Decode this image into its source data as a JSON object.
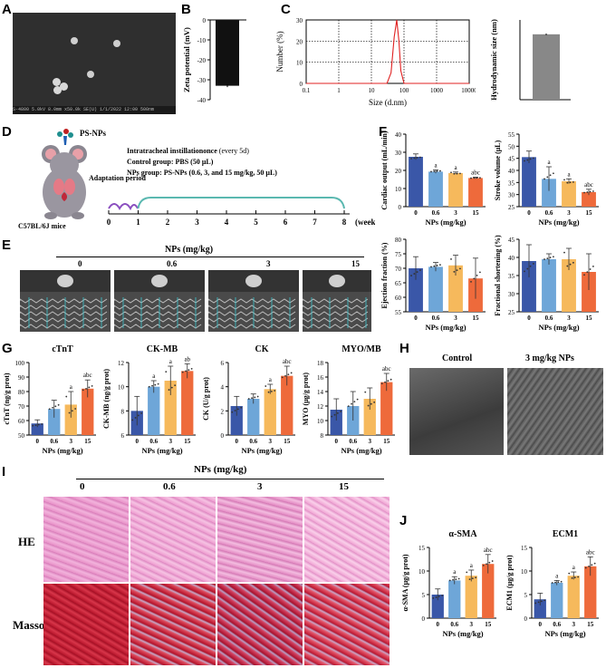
{
  "panel_labels": {
    "A": "A",
    "B": "B",
    "C": "C",
    "D": "D",
    "E": "E",
    "F": "F",
    "G": "G",
    "H": "H",
    "I": "I",
    "J": "J"
  },
  "colors": {
    "blue": "#3a57a8",
    "lightblue": "#6ea6d8",
    "orange": "#f6b95c",
    "red": "#ee6a3b",
    "dls": "#e02020",
    "gray": "#888888",
    "black": "#111111"
  },
  "panel_a": {
    "caption": "S-4800 5.0kV 8.0mm x50.0k SE(U) 1/1/2022 12:00   500nm"
  },
  "panel_d": {
    "agent": "PS-NPs",
    "adaptation": "Adaptation period",
    "protocol_line1": "Intratracheal instillationonce",
    "protocol_every": "(every 5d)",
    "protocol_line2": "Control group: PBS (50 μL)",
    "protocol_line3": "NPs group: PS-NPs (0.6, 3, and 15 mg/kg, 50 μL)",
    "mice": "C57BL/6J mice",
    "ticks": [
      "0",
      "1",
      "2",
      "3",
      "4",
      "5",
      "6",
      "7",
      "8"
    ],
    "unit": "(weeks)"
  },
  "panel_e": {
    "title": "NPs (mg/kg)",
    "doses": [
      "0",
      "0.6",
      "3",
      "15"
    ]
  },
  "panel_h": {
    "control": "Control",
    "treated": "3 mg/kg NPs"
  },
  "panel_i": {
    "title": "NPs (mg/kg)",
    "doses": [
      "0",
      "0.6",
      "3",
      "15"
    ],
    "rows": [
      "HE",
      "Masson"
    ]
  },
  "chart_data": [
    {
      "id": "B",
      "type": "bar",
      "categories": [
        ""
      ],
      "values": [
        -33
      ],
      "ylabel": "Zeta potential (mV)",
      "ylim": [
        -40,
        0
      ],
      "yticks": [
        "0",
        "-10",
        "-20",
        "-30",
        "-40"
      ]
    },
    {
      "id": "C-left",
      "type": "line",
      "x": [
        0.1,
        1,
        10,
        30,
        40,
        50,
        60,
        70,
        80,
        100,
        1000,
        10000
      ],
      "values": [
        0,
        0,
        0,
        0,
        5,
        22,
        30,
        20,
        6,
        0,
        0,
        0
      ],
      "xlabel": "Size (d.nm)",
      "ylabel": "Number (%)",
      "ylim": [
        0,
        30
      ],
      "xticks": [
        "0.1",
        "1",
        "10",
        "100",
        "1000",
        "10000"
      ],
      "yticks": [
        "0",
        "10",
        "20",
        "30"
      ]
    },
    {
      "id": "C-right",
      "type": "bar",
      "categories": [
        ""
      ],
      "values": [
        82
      ],
      "ylabel": "Hydrodynamic size (nm)"
    },
    {
      "id": "F1",
      "type": "bar",
      "categories": [
        "0",
        "0.6",
        "3",
        "15"
      ],
      "values": [
        27.5,
        19.3,
        18.5,
        15.8
      ],
      "errors": [
        1.6,
        0.9,
        0.6,
        0.5
      ],
      "sig": [
        "",
        "a",
        "a",
        "abc"
      ],
      "ylabel": "Cardiac output (mL/min)",
      "xlabel": "NPs (mg/kg)",
      "ylim": [
        0,
        40
      ],
      "yticks": [
        "0",
        "10",
        "20",
        "30",
        "40"
      ]
    },
    {
      "id": "F2",
      "type": "bar",
      "categories": [
        "0",
        "0.6",
        "3",
        "15"
      ],
      "values": [
        45.5,
        36.5,
        35.5,
        31
      ],
      "errors": [
        2.5,
        5,
        1,
        1.2
      ],
      "sig": [
        "",
        "a",
        "a",
        "abc"
      ],
      "ylabel": "Stroke volume (μL)",
      "xlabel": "NPs (mg/kg)",
      "ylim": [
        25,
        55
      ],
      "yticks": [
        "25",
        "30",
        "35",
        "40",
        "45",
        "50",
        "55"
      ]
    },
    {
      "id": "F3",
      "type": "bar",
      "categories": [
        "0",
        "0.6",
        "3",
        "15"
      ],
      "values": [
        70,
        70.5,
        71,
        66.5
      ],
      "errors": [
        4,
        1.5,
        3.5,
        7
      ],
      "sig": [
        "",
        "",
        "",
        ""
      ],
      "ylabel": "Ejection fraction (%)",
      "xlabel": "NPs (mg/kg)",
      "ylim": [
        55,
        80
      ],
      "yticks": [
        "55",
        "60",
        "65",
        "70",
        "75",
        "80"
      ]
    },
    {
      "id": "F4",
      "type": "bar",
      "categories": [
        "0",
        "0.6",
        "3",
        "15"
      ],
      "values": [
        39,
        39.5,
        39.5,
        36
      ],
      "errors": [
        4.5,
        1.5,
        3,
        5
      ],
      "sig": [
        "",
        "",
        "",
        ""
      ],
      "ylabel": "Fractional shortening (%)",
      "xlabel": "NPs (mg/kg)",
      "ylim": [
        25,
        45
      ],
      "yticks": [
        "25",
        "30",
        "35",
        "40",
        "45"
      ]
    },
    {
      "id": "G1",
      "type": "bar",
      "title": "cTnT",
      "categories": [
        "0",
        "0.6",
        "3",
        "15"
      ],
      "values": [
        58,
        68,
        71,
        82
      ],
      "errors": [
        2.5,
        6,
        9,
        6
      ],
      "sig": [
        "",
        "",
        "a",
        "abc"
      ],
      "ylabel": "cTnT (ng/g prot)",
      "xlabel": "NPs (mg/kg)",
      "ylim": [
        50,
        100
      ],
      "yticks": [
        "50",
        "60",
        "70",
        "80",
        "90",
        "100"
      ]
    },
    {
      "id": "G2",
      "type": "bar",
      "title": "CK-MB",
      "categories": [
        "0",
        "0.6",
        "3",
        "15"
      ],
      "values": [
        8,
        10,
        10.5,
        11.3
      ],
      "errors": [
        1.2,
        0.5,
        1.2,
        0.6
      ],
      "sig": [
        "",
        "a",
        "a",
        "ab"
      ],
      "ylabel": "CK-MB (ng/g prot)",
      "xlabel": "NPs (mg/kg)",
      "ylim": [
        6,
        12
      ],
      "yticks": [
        "6",
        "8",
        "10",
        "12"
      ]
    },
    {
      "id": "G3",
      "type": "bar",
      "title": "CK",
      "categories": [
        "0",
        "0.6",
        "3",
        "15"
      ],
      "values": [
        2.4,
        3,
        3.8,
        4.9
      ],
      "errors": [
        0.8,
        0.4,
        0.4,
        0.8
      ],
      "sig": [
        "",
        "",
        "a",
        "abc"
      ],
      "ylabel": "CK (U/g prot)",
      "xlabel": "NPs (mg/kg)",
      "ylim": [
        0,
        6
      ],
      "yticks": [
        "0",
        "2",
        "4",
        "6"
      ]
    },
    {
      "id": "G4",
      "type": "bar",
      "title": "MYO/MB",
      "categories": [
        "0",
        "0.6",
        "3",
        "15"
      ],
      "values": [
        11.5,
        12,
        13,
        15.3
      ],
      "errors": [
        1.5,
        2,
        1.5,
        1.2
      ],
      "sig": [
        "",
        "",
        "",
        "abc"
      ],
      "ylabel": "MYO (μg/g prot)",
      "xlabel": "NPs (mg/kg)",
      "ylim": [
        8,
        18
      ],
      "yticks": [
        "8",
        "10",
        "12",
        "14",
        "16",
        "18"
      ]
    },
    {
      "id": "J1",
      "type": "bar",
      "title": "α-SMA",
      "categories": [
        "0",
        "0.6",
        "3",
        "15"
      ],
      "values": [
        5,
        8,
        9,
        11.5
      ],
      "errors": [
        1.2,
        0.8,
        1.2,
        2
      ],
      "sig": [
        "",
        "a",
        "a",
        "abc"
      ],
      "ylabel": "α-SMA (μg/g prot)",
      "xlabel": "NPs (mg/kg)",
      "ylim": [
        0,
        15
      ],
      "yticks": [
        "0",
        "5",
        "10",
        "15"
      ]
    },
    {
      "id": "J2",
      "type": "bar",
      "title": "ECM1",
      "categories": [
        "0",
        "0.6",
        "3",
        "15"
      ],
      "values": [
        4,
        7.5,
        9,
        11
      ],
      "errors": [
        1.3,
        0.5,
        0.8,
        2
      ],
      "sig": [
        "",
        "a",
        "a",
        "abc"
      ],
      "ylabel": "ECM1 (μg/g prot)",
      "xlabel": "NPs (mg/kg)",
      "ylim": [
        0,
        15
      ],
      "yticks": [
        "0",
        "5",
        "10",
        "15"
      ]
    }
  ]
}
